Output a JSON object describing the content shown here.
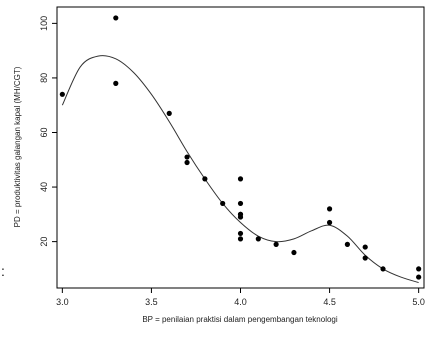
{
  "chart_data": {
    "type": "scatter",
    "xlabel": "BP = penilaian praktisi dalam pengembangan teknologi",
    "ylabel": "PD = produktivitas galangan kapal (MH/CGT)",
    "xlim": [
      2.97,
      5.03
    ],
    "ylim": [
      3,
      106
    ],
    "x_ticks": [
      "3.0",
      "3.5",
      "4.0",
      "4.5",
      "5.0"
    ],
    "y_ticks": [
      "20",
      "40",
      "60",
      "80",
      "100"
    ],
    "grid": false,
    "points": {
      "x": [
        3.0,
        3.3,
        3.3,
        3.6,
        3.7,
        3.7,
        3.8,
        3.9,
        4.0,
        4.0,
        4.0,
        4.0,
        4.0,
        4.0,
        4.0,
        4.1,
        4.2,
        4.3,
        4.5,
        4.5,
        4.6,
        4.7,
        4.7,
        4.8,
        5.0,
        5.0
      ],
      "y": [
        74,
        102,
        78,
        67,
        51,
        49,
        43,
        34,
        43,
        34,
        30,
        29,
        23,
        21,
        30,
        21,
        19,
        16,
        32,
        27,
        19,
        18,
        14,
        10,
        10,
        7
      ]
    },
    "fit_curve": {
      "x": [
        3.0,
        3.1,
        3.2,
        3.3,
        3.4,
        3.5,
        3.6,
        3.7,
        3.8,
        3.9,
        4.0,
        4.1,
        4.2,
        4.3,
        4.4,
        4.5,
        4.6,
        4.7,
        4.8,
        4.9,
        5.0
      ],
      "y": [
        70,
        84,
        88,
        87,
        82,
        74,
        64,
        53,
        43,
        34,
        27,
        22,
        20,
        21,
        24,
        26,
        22,
        15,
        10,
        7,
        5
      ]
    }
  },
  "stray_mark": ":"
}
